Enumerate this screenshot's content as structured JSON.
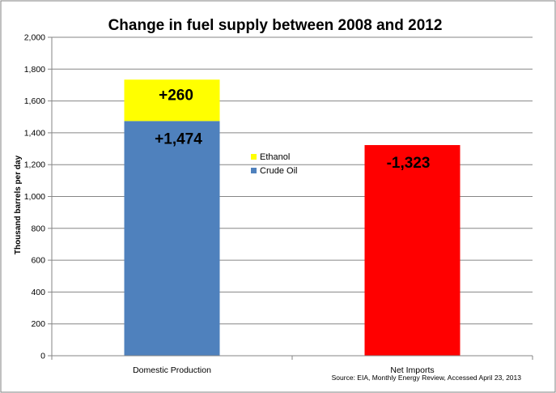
{
  "chart_data": {
    "type": "bar",
    "title": "Change in fuel supply between 2008 and 2012",
    "ylabel": "Thousand barrels per day",
    "xlabel": "",
    "ylim": [
      0,
      2000
    ],
    "y_ticks": [
      0,
      200,
      400,
      600,
      800,
      1000,
      1200,
      1400,
      1600,
      1800,
      2000
    ],
    "y_tick_labels": [
      "0",
      "200",
      "400",
      "600",
      "800",
      "1,000",
      "1,200",
      "1,400",
      "1,600",
      "1,800",
      "2,000"
    ],
    "grid": true,
    "categories": [
      "Domestic Production",
      "Net Imports"
    ],
    "series": [
      {
        "name": "Crude Oil",
        "color": "#4f81bd",
        "values": [
          1474,
          0
        ]
      },
      {
        "name": "Ethanol",
        "color": "#ffff00",
        "values": [
          260,
          0
        ]
      },
      {
        "name": "",
        "color": "#ff0000",
        "values": [
          0,
          1323
        ]
      }
    ],
    "data_labels": [
      {
        "text": "+260",
        "category": "Domestic Production",
        "series": "Ethanol"
      },
      {
        "text": "+1,474",
        "category": "Domestic Production",
        "series": "Crude Oil"
      },
      {
        "text": "-1,323",
        "category": "Net Imports",
        "series": ""
      }
    ],
    "legend": {
      "placement": "center",
      "entries": [
        {
          "name": "Ethanol",
          "color": "#ffff00"
        },
        {
          "name": "Crude Oil",
          "color": "#4f81bd"
        }
      ]
    },
    "source": "Source: EIA, Monthly Energy Review, Accessed April 23, 2013"
  }
}
